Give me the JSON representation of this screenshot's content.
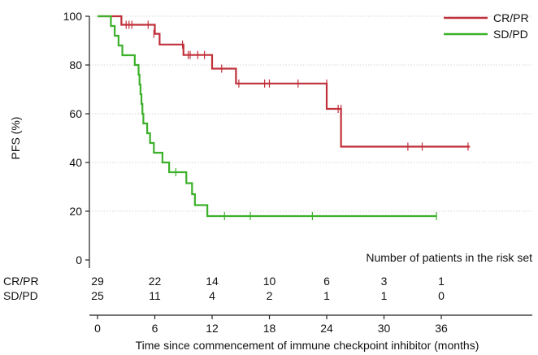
{
  "chart_data": {
    "type": "line",
    "subtype": "kaplan-meier step",
    "ylabel": "PFS (%)",
    "xlabel": "Time since commencement of immune checkpoint inhibitor (months)",
    "xlim": [
      0,
      44
    ],
    "ylim": [
      0,
      100
    ],
    "x_ticks": [
      0,
      6,
      12,
      18,
      24,
      30,
      36
    ],
    "y_ticks": [
      0,
      20,
      40,
      60,
      80,
      100
    ],
    "grid": "horizontal dotted",
    "legend_position": "top-right",
    "series": [
      {
        "name": "CR/PR",
        "color": "#c0303a",
        "steps": [
          [
            0,
            100
          ],
          [
            2.5,
            96.5
          ],
          [
            6,
            92.8
          ],
          [
            6.5,
            88.4
          ],
          [
            9,
            84.1
          ],
          [
            12,
            78.5
          ],
          [
            14.5,
            72.4
          ],
          [
            24,
            62.0
          ],
          [
            25.5,
            46.5
          ],
          [
            39,
            46.5
          ]
        ],
        "censored": [
          [
            3,
            96.5
          ],
          [
            3.3,
            96.5
          ],
          [
            3.6,
            96.5
          ],
          [
            5.3,
            96.5
          ],
          [
            5.9,
            92.8
          ],
          [
            8.9,
            88.4
          ],
          [
            9.5,
            84.1
          ],
          [
            9.7,
            84.1
          ],
          [
            10.5,
            84.1
          ],
          [
            11.2,
            84.1
          ],
          [
            13,
            78.5
          ],
          [
            14.8,
            72.4
          ],
          [
            17.5,
            72.4
          ],
          [
            18,
            72.4
          ],
          [
            21,
            72.4
          ],
          [
            24,
            72.4
          ],
          [
            25.2,
            62.0
          ],
          [
            25.5,
            62.0
          ],
          [
            32.5,
            46.5
          ],
          [
            34,
            46.5
          ],
          [
            38.8,
            46.5
          ]
        ]
      },
      {
        "name": "SD/PD",
        "color": "#3cb02a",
        "steps": [
          [
            0,
            100
          ],
          [
            1.4,
            96
          ],
          [
            1.8,
            92
          ],
          [
            2.2,
            88
          ],
          [
            2.6,
            84
          ],
          [
            3.9,
            80
          ],
          [
            4.3,
            76
          ],
          [
            4.4,
            72
          ],
          [
            4.5,
            68
          ],
          [
            4.6,
            64
          ],
          [
            4.7,
            60
          ],
          [
            4.8,
            56
          ],
          [
            5.2,
            52
          ],
          [
            5.5,
            48
          ],
          [
            5.9,
            44
          ],
          [
            6.8,
            40
          ],
          [
            7.5,
            36
          ],
          [
            9.3,
            31.5
          ],
          [
            9.9,
            27
          ],
          [
            10.2,
            22.5
          ],
          [
            11.5,
            18
          ],
          [
            35.5,
            18
          ]
        ],
        "censored": [
          [
            8.2,
            36
          ],
          [
            13.3,
            18
          ],
          [
            16,
            18
          ],
          [
            22.5,
            18
          ],
          [
            35.5,
            18
          ]
        ]
      }
    ],
    "risk_table": {
      "title": "Number of patients in the risk set",
      "times": [
        0,
        6,
        12,
        18,
        24,
        30,
        36
      ],
      "rows": [
        {
          "label": "CR/PR",
          "counts": [
            "29",
            "22",
            "14",
            "10",
            "6",
            "3",
            "1"
          ]
        },
        {
          "label": "SD/PD",
          "counts": [
            "25",
            "11",
            "4",
            "2",
            "1",
            "1",
            "0"
          ]
        }
      ]
    }
  }
}
